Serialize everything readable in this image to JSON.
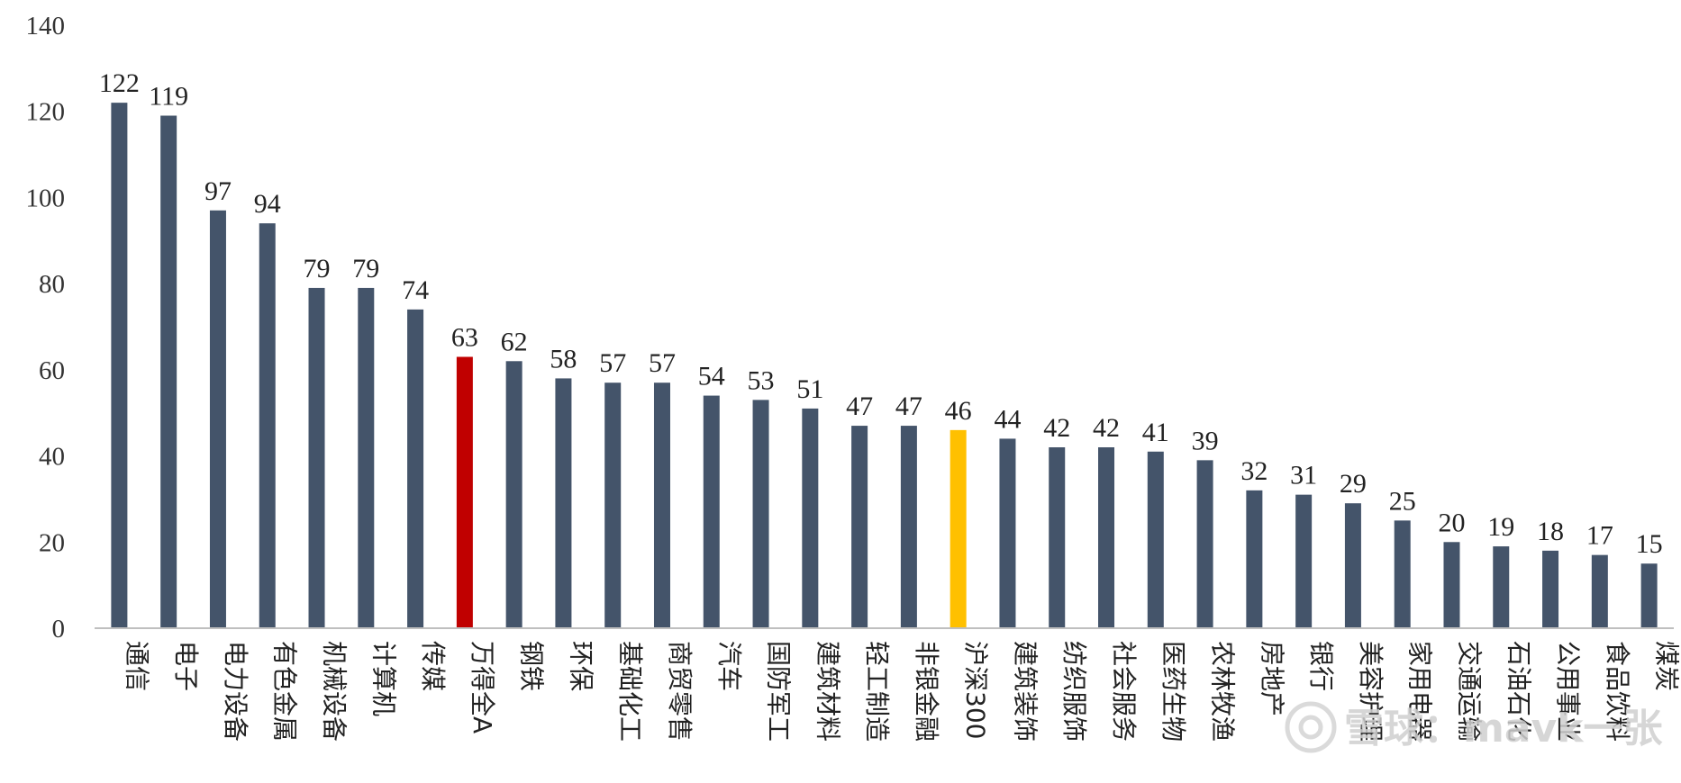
{
  "chart_data": {
    "type": "bar",
    "categories": [
      "通信",
      "电子",
      "电力设备",
      "有色金属",
      "机械设备",
      "计算机",
      "传媒",
      "万得全A",
      "钢铁",
      "环保",
      "基础化工",
      "商贸零售",
      "汽车",
      "国防军工",
      "建筑材料",
      "轻工制造",
      "非银金融",
      "沪深300",
      "建筑装饰",
      "纺织服饰",
      "社会服务",
      "医药生物",
      "农林牧渔",
      "房地产",
      "银行",
      "美容护理",
      "家用电器",
      "交通运输",
      "石油石化",
      "公用事业",
      "食品饮料",
      "煤炭"
    ],
    "values": [
      122,
      119,
      97,
      94,
      79,
      79,
      74,
      63,
      62,
      58,
      57,
      57,
      54,
      53,
      51,
      47,
      47,
      46,
      44,
      42,
      42,
      41,
      39,
      32,
      31,
      29,
      25,
      20,
      19,
      18,
      17,
      15
    ],
    "value_labels": [
      "122",
      "119",
      "97",
      "94",
      "79",
      "79",
      "74",
      "63",
      "62",
      "58",
      "57",
      "57",
      "54",
      "53",
      "51",
      "47",
      "47",
      "46",
      "44",
      "42",
      "42",
      "41",
      "39",
      "32",
      "31",
      "29",
      "25",
      "20",
      "19",
      "18",
      "17",
      "15"
    ],
    "ylim": [
      0,
      140
    ],
    "yticks": [
      0,
      20,
      40,
      60,
      80,
      100,
      120,
      140
    ],
    "grid": false,
    "legend": "none",
    "title": "",
    "xlabel": "",
    "ylabel": "",
    "colors": {
      "default": "#44546a",
      "highlight_wind_all_a": "#c00000",
      "highlight_csi300": "#ffc000",
      "axis": "#bfbfbf"
    },
    "highlights": {
      "万得全A": "#c00000",
      "沪深300": "#ffc000"
    }
  },
  "watermark": {
    "text": "雪球：mavk一张",
    "icon": "snowball-logo-icon"
  }
}
